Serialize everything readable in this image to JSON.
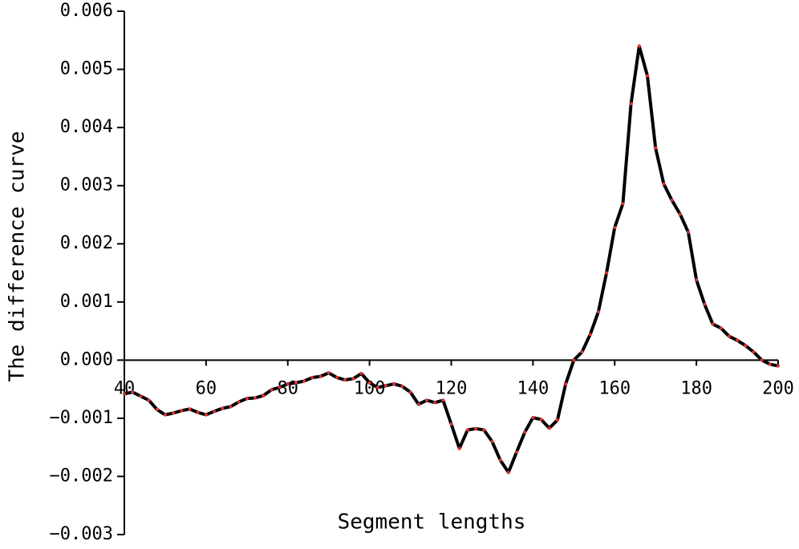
{
  "chart_data": {
    "type": "line",
    "xlabel": "Segment lengths",
    "ylabel": "The difference curve",
    "x": [
      40,
      42,
      44,
      46,
      48,
      50,
      52,
      54,
      56,
      58,
      60,
      62,
      64,
      66,
      68,
      70,
      72,
      74,
      76,
      78,
      80,
      82,
      84,
      86,
      88,
      90,
      92,
      94,
      96,
      98,
      100,
      102,
      104,
      106,
      108,
      110,
      112,
      114,
      116,
      118,
      120,
      122,
      124,
      126,
      128,
      130,
      132,
      134,
      136,
      138,
      140,
      142,
      144,
      146,
      148,
      150,
      152,
      154,
      156,
      158,
      160,
      162,
      164,
      166,
      168,
      170,
      172,
      174,
      176,
      178,
      180,
      182,
      184,
      186,
      188,
      190,
      192,
      194,
      196,
      198,
      200
    ],
    "series": [
      {
        "color": "#000000",
        "marker_color": "#e03030",
        "values": [
          -0.00058,
          -0.00055,
          -0.00062,
          -0.00069,
          -0.00085,
          -0.00094,
          -0.00091,
          -0.00087,
          -0.00084,
          -0.0009,
          -0.00094,
          -0.00088,
          -0.00083,
          -0.0008,
          -0.00072,
          -0.00066,
          -0.00065,
          -0.00061,
          -0.00051,
          -0.00047,
          -0.00041,
          -0.00039,
          -0.00036,
          -0.0003,
          -0.00028,
          -0.00022,
          -0.0003,
          -0.00034,
          -0.00032,
          -0.00023,
          -0.00039,
          -0.00047,
          -0.00044,
          -0.00041,
          -0.00045,
          -0.00055,
          -0.00076,
          -0.00069,
          -0.00073,
          -0.00069,
          -0.0011,
          -0.00152,
          -0.0012,
          -0.00118,
          -0.0012,
          -0.0014,
          -0.00172,
          -0.00193,
          -0.00158,
          -0.00124,
          -0.00099,
          -0.00102,
          -0.00117,
          -0.00103,
          -0.00041,
          0,
          0.00014,
          0.00044,
          0.00083,
          0.0015,
          0.00228,
          0.00269,
          0.00441,
          0.0054,
          0.00489,
          0.00365,
          0.00303,
          0.00275,
          0.00251,
          0.0022,
          0.00138,
          0.00096,
          0.00062,
          0.00055,
          0.00041,
          0.00034,
          0.00025,
          0.00014,
          0,
          -7e-05,
          -0.0001
        ]
      }
    ],
    "xlim": [
      40,
      200
    ],
    "xticks": [
      40,
      60,
      80,
      100,
      120,
      140,
      160,
      180,
      200
    ],
    "ylim": [
      -0.003,
      0.006
    ],
    "yticks": [
      {
        "value": -0.003,
        "label": "−0.003"
      },
      {
        "value": -0.002,
        "label": "−0.002"
      },
      {
        "value": -0.001,
        "label": "−0.001"
      },
      {
        "value": 0,
        "label": "0.000"
      },
      0.001,
      0.002,
      0.003,
      0.004,
      0.005,
      0.006
    ]
  }
}
